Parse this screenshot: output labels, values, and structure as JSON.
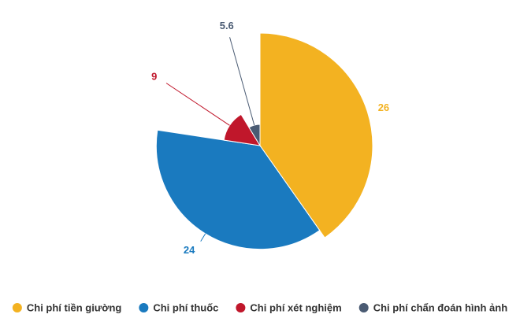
{
  "chart_data": {
    "type": "pie",
    "variable_radius": true,
    "categories": [
      "Chi phí tiền giường",
      "Chi phí thuốc",
      "Chi phí xét nghiệm",
      "Chi phí chẩn đoán hình ảnh"
    ],
    "values": [
      26,
      24,
      9,
      5.6
    ],
    "colors": [
      "#f3b221",
      "#1a7abf",
      "#c0172b",
      "#4a5b73"
    ],
    "legend": "bottom"
  }
}
